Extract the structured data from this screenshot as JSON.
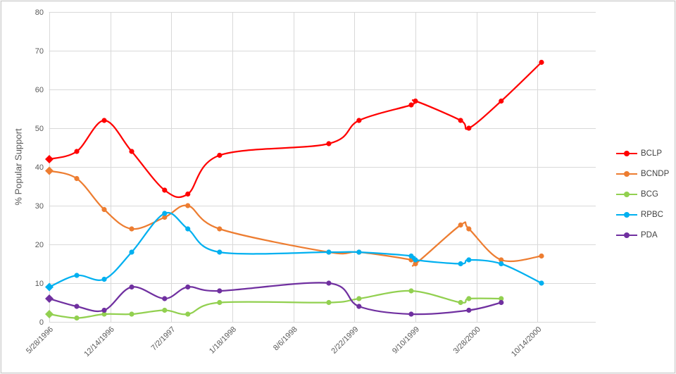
{
  "chart_data": {
    "type": "line",
    "title": "",
    "xlabel": "",
    "ylabel": "% Popular Support",
    "ylim": [
      0,
      80
    ],
    "yticks": [
      0,
      10,
      20,
      30,
      40,
      50,
      60,
      70,
      80
    ],
    "grid": true,
    "line_smoothing": true,
    "legend_position": "right",
    "x_axis_type": "date",
    "xtick_labels": [
      "5/28/1996",
      "12/14/1996",
      "7/2/1997",
      "1/18/1998",
      "8/6/1998",
      "2/22/1999",
      "9/10/1999",
      "3/28/2000",
      "10/14/2000"
    ],
    "xtick_interval_days": 200,
    "marker_note": "first point of each series is a diamond, later points are circles",
    "series": [
      {
        "name": "BCLP",
        "color": "#FF0000",
        "points": [
          [
            "5/28/1996",
            42
          ],
          [
            "8/26/1996",
            44
          ],
          [
            "11/24/1996",
            52
          ],
          [
            "2/22/1997",
            44
          ],
          [
            "6/10/1997",
            34
          ],
          [
            "8/25/1997",
            33
          ],
          [
            "12/7/1997",
            43
          ],
          [
            "11/30/1998",
            46
          ],
          [
            "3/9/1999",
            52
          ],
          [
            "8/27/1999",
            56
          ],
          [
            "9/10/1999",
            57
          ],
          [
            "2/5/2000",
            52
          ],
          [
            "3/3/2000",
            50
          ],
          [
            "6/17/2000",
            57
          ],
          [
            "10/27/2000",
            67
          ]
        ]
      },
      {
        "name": "BCNDP",
        "color": "#ED7D31",
        "points": [
          [
            "5/28/1996",
            39
          ],
          [
            "8/26/1996",
            37
          ],
          [
            "11/24/1996",
            29
          ],
          [
            "2/22/1997",
            24
          ],
          [
            "6/10/1997",
            27
          ],
          [
            "8/25/1997",
            30
          ],
          [
            "12/7/1997",
            24
          ],
          [
            "11/30/1998",
            18
          ],
          [
            "3/9/1999",
            18
          ],
          [
            "8/27/1999",
            16
          ],
          [
            "9/10/1999",
            15
          ],
          [
            "2/5/2000",
            25
          ],
          [
            "3/3/2000",
            24
          ],
          [
            "6/17/2000",
            16
          ],
          [
            "10/27/2000",
            17
          ]
        ]
      },
      {
        "name": "BCG",
        "color": "#92D050",
        "points": [
          [
            "5/28/1996",
            2
          ],
          [
            "8/26/1996",
            1
          ],
          [
            "11/24/1996",
            2
          ],
          [
            "2/22/1997",
            2
          ],
          [
            "6/10/1997",
            3
          ],
          [
            "8/25/1997",
            2
          ],
          [
            "12/7/1997",
            5
          ],
          [
            "11/30/1998",
            5
          ],
          [
            "3/9/1999",
            6
          ],
          [
            "8/27/1999",
            8
          ],
          [
            "2/5/2000",
            5
          ],
          [
            "3/3/2000",
            6
          ],
          [
            "6/17/2000",
            6
          ]
        ]
      },
      {
        "name": "RPBC",
        "color": "#00B0F0",
        "points": [
          [
            "5/28/1996",
            9
          ],
          [
            "8/26/1996",
            12
          ],
          [
            "11/24/1996",
            11
          ],
          [
            "2/22/1997",
            18
          ],
          [
            "6/10/1997",
            28
          ],
          [
            "8/25/1997",
            24
          ],
          [
            "12/7/1997",
            18
          ],
          [
            "11/30/1998",
            18
          ],
          [
            "3/9/1999",
            18
          ],
          [
            "8/27/1999",
            17
          ],
          [
            "9/10/1999",
            16
          ],
          [
            "2/5/2000",
            15
          ],
          [
            "3/3/2000",
            16
          ],
          [
            "6/17/2000",
            15
          ],
          [
            "10/27/2000",
            10
          ]
        ]
      },
      {
        "name": "PDA",
        "color": "#7030A0",
        "points": [
          [
            "5/28/1996",
            6
          ],
          [
            "8/26/1996",
            4
          ],
          [
            "11/24/1996",
            3
          ],
          [
            "2/22/1997",
            9
          ],
          [
            "6/10/1997",
            6
          ],
          [
            "8/25/1997",
            9
          ],
          [
            "12/7/1997",
            8
          ],
          [
            "11/30/1998",
            10
          ],
          [
            "3/9/1999",
            4
          ],
          [
            "8/27/1999",
            2
          ],
          [
            "3/3/2000",
            3
          ],
          [
            "6/17/2000",
            5
          ]
        ]
      }
    ]
  },
  "styles": {
    "background": "#FFFFFF",
    "border_color": "#C9C9C9",
    "grid_color": "#D9D9D9",
    "axis_text_color": "#595959",
    "legend_text_color": "#404040"
  }
}
